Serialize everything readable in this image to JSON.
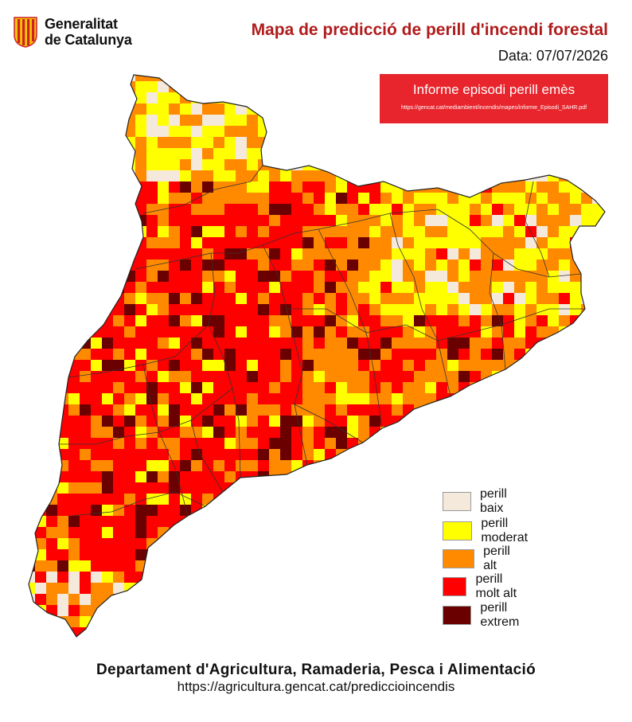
{
  "header": {
    "logo_line1": "Generalitat",
    "logo_line2": "de Catalunya",
    "title": "Mapa de predicció de perill d'incendi forestal",
    "date": "Data: 07/07/2026"
  },
  "episode_banner": {
    "label": "Informe episodi perill emès",
    "url": "https://gencat.cat/mediambient/incendis/mapes/informe_Episodi_SAHR.pdf",
    "color": "#e8242c"
  },
  "legend": [
    {
      "key": "baix",
      "label": "perill baix",
      "color": "#f5e9dc"
    },
    {
      "key": "moderat",
      "label": "perill moderat",
      "color": "#ffff00"
    },
    {
      "key": "alt",
      "label": "perill alt",
      "color": "#ff8a00"
    },
    {
      "key": "molt_alt",
      "label": "perill molt alt",
      "color": "#ff0000"
    },
    {
      "key": "extrem",
      "label": "perill extrem",
      "color": "#6b0000"
    }
  ],
  "footer": {
    "department": "Departament d'Agricultura, Ramaderia, Pesca i Alimentació",
    "url": "https://agricultura.gencat.cat/prediccioincendis"
  },
  "colors": {
    "brand_red": "#b01c1c",
    "logo_red": "#d0202a",
    "logo_gold": "#f0c400"
  }
}
